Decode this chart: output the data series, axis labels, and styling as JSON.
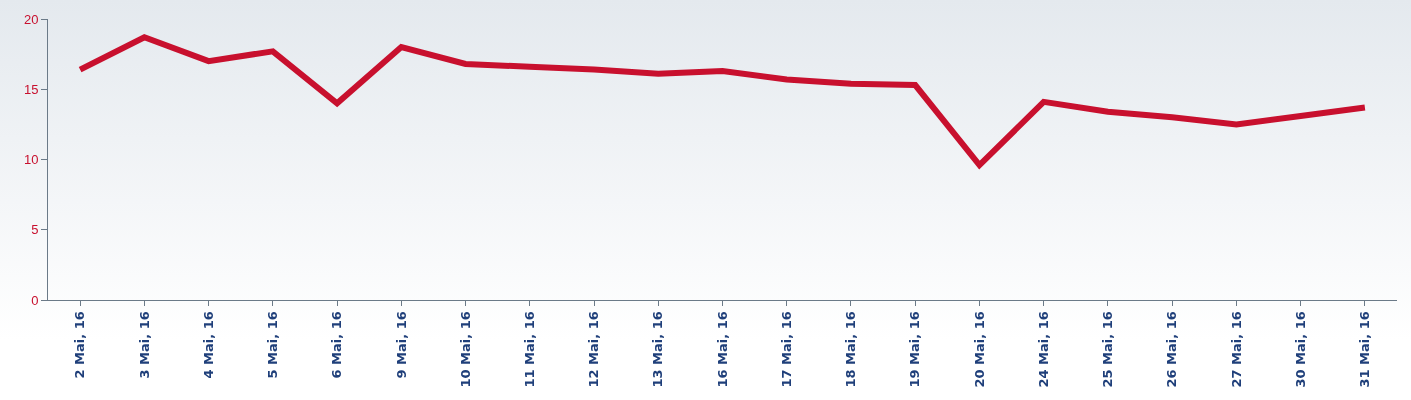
{
  "chart_data": {
    "type": "line",
    "categories": [
      "2 Mai, 16",
      "3 Mai, 16",
      "4 Mai, 16",
      "5 Mai, 16",
      "6 Mai, 16",
      "9 Mai, 16",
      "10 Mai, 16",
      "11 Mai, 16",
      "12 Mai, 16",
      "13 Mai, 16",
      "16 Mai, 16",
      "17 Mai, 16",
      "18 Mai, 16",
      "19 Mai, 16",
      "20 Mai, 16",
      "24 Mai, 16",
      "25 Mai, 16",
      "26 Mai, 16",
      "27 Mai, 16",
      "30 Mai, 16",
      "31 Mai, 16"
    ],
    "series": [
      {
        "color": "#c8102e",
        "values": [
          16.4,
          18.7,
          17.0,
          17.7,
          14.0,
          18.0,
          16.8,
          16.6,
          16.4,
          16.1,
          16.3,
          15.7,
          15.4,
          15.3,
          9.6,
          14.1,
          13.4,
          13.0,
          12.5,
          13.1,
          13.7
        ]
      }
    ],
    "ylim": [
      0,
      20
    ],
    "yticks": [
      0,
      5,
      10,
      15,
      20
    ],
    "grid": false,
    "marker": "none",
    "line_style": "solid"
  }
}
